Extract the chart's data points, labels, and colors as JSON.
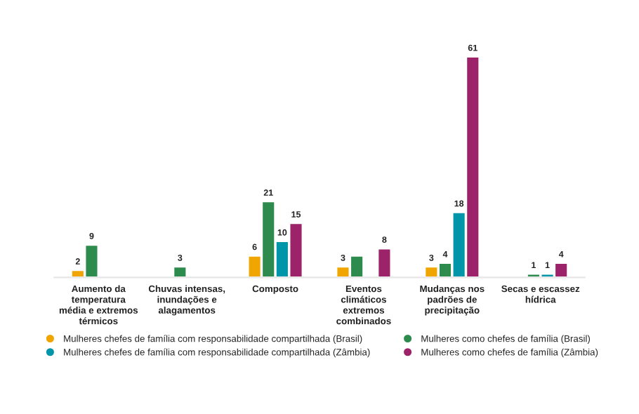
{
  "chart_data": {
    "type": "bar",
    "categories": [
      "Aumento da temperatura média e extremos térmicos",
      "Chuvas intensas, inundações e alagamentos",
      "Composto",
      "Eventos climáticos extremos combinados",
      "Mudanças nos padrões de precipitação",
      "Secas e escassez hídrica"
    ],
    "series": [
      {
        "name": "Mulheres chefes de família com responsabilidade compartilhada (Brasil)",
        "color": "#f0a500",
        "values": [
          2,
          null,
          6,
          3,
          3,
          null
        ],
        "value_labels": [
          "2",
          null,
          "6",
          "3",
          "3",
          null
        ]
      },
      {
        "name": "Mulheres como chefes de família (Brasil)",
        "color": "#2e8b4e",
        "values": [
          9,
          3,
          21,
          6,
          4,
          1
        ],
        "value_labels": [
          "9",
          "3",
          "21",
          null,
          "4",
          "1"
        ]
      },
      {
        "name": "Mulheres chefes de família com responsabilidade compartilhada (Zâmbia)",
        "color": "#0095a8",
        "values": [
          null,
          null,
          10,
          null,
          18,
          1
        ],
        "value_labels": [
          null,
          null,
          "10",
          null,
          "18",
          "1"
        ]
      },
      {
        "name": "Mulheres como chefes de família (Zâmbia)",
        "color": "#9c2369",
        "values": [
          null,
          null,
          15,
          8,
          61,
          4
        ],
        "value_labels": [
          null,
          null,
          "15",
          "8",
          "61",
          "4"
        ]
      }
    ],
    "legend": "bottom",
    "marker": "circle",
    "grid": false
  }
}
